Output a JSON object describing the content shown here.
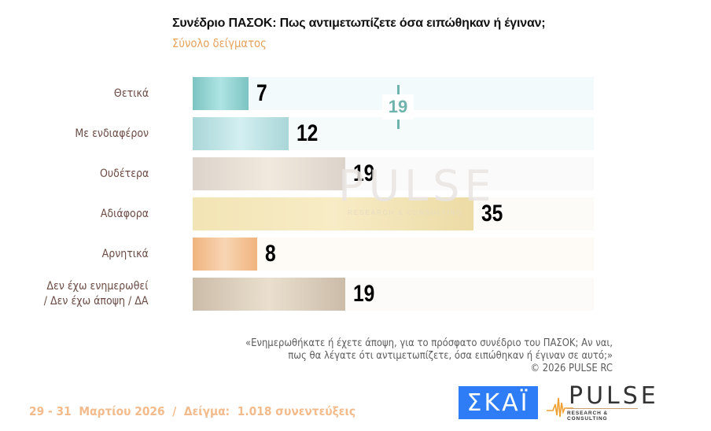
{
  "header": {
    "title": "Συνέδριο ΠΑΣΟΚ: Πως αντιμετωπίζετε όσα ειπώθηκαν ή έγιναν;",
    "subtitle": "Σύνολο δείγματος"
  },
  "chart_data": {
    "type": "bar",
    "orientation": "horizontal",
    "title": "Συνέδριο ΠΑΣΟΚ: Πως αντιμετωπίζετε όσα ειπώθηκαν ή έγιναν;",
    "subtitle": "Σύνολο δείγματος",
    "xlabel": "",
    "ylabel": "",
    "unit": "%",
    "categories": [
      "Θετικά",
      "Με ενδιαφέρον",
      "Ουδέτερα",
      "Αδιάφορα",
      "Αρνητικά",
      "Δεν έχω ενημερωθεί / Δεν έχω άποψη / ΔΑ"
    ],
    "values": [
      7,
      12,
      19,
      35,
      8,
      19
    ],
    "annotations": [
      {
        "text": "19",
        "description": "Θετικά + Με ενδιαφέρον combined",
        "color": "#6fb3ad"
      }
    ],
    "grid": false,
    "legend": null
  },
  "rows": [
    {
      "label": "Θετικά",
      "value": "7",
      "bar": [
        "#7cc4c2",
        "#aee4e3",
        "#7cc4c2"
      ],
      "track": "#f3fafb"
    },
    {
      "label": "Με ενδιαφέρον",
      "value": "12",
      "bar": [
        "#a9d6d8",
        "#d3eff1",
        "#a9d6d8"
      ],
      "track": "#f5fafb"
    },
    {
      "label": "Ουδέτερα",
      "value": "19",
      "bar": [
        "#dcd4ca",
        "#f1e8de",
        "#dcd4ca"
      ],
      "track": "#fbfafa"
    },
    {
      "label": "Αδιάφορα",
      "value": "35",
      "bar": [
        "#f2e4b4",
        "#f8ecc6",
        "#ecdba5"
      ],
      "track": "#fdfbf8"
    },
    {
      "label": "Αρνητικά",
      "value": "8",
      "bar": [
        "#f0b47e",
        "#f8d5b4",
        "#f0b47e"
      ],
      "track": "#fefaf6"
    },
    {
      "label": "Δεν έχω ενημερωθεί\n/ Δεν έχω άποψη / ΔΑ",
      "value": "19",
      "bar": [
        "#cbbca8",
        "#eadfcf",
        "#cbbca8"
      ],
      "track": "#fcfbfa"
    }
  ],
  "annotation": {
    "value": "19",
    "color": "#6fb3ad"
  },
  "watermark": {
    "text": "PULSE",
    "sub": "RESEARCH & CONSULTING"
  },
  "question": {
    "line1": "«Ενημερωθήκατε ή έχετε άποψη, για το πρόσφατο συνέδριο του ΠΑΣΟΚ; Αν ναι,",
    "line2": "πως θα λέγατε ότι αντιμετωπίζετε, όσα ειπώθηκαν ή έγιναν σε αυτό;»",
    "copyright": "©  2026  PULSE RC"
  },
  "footer": {
    "text": "29 - 31  Μαρτίου 2026  /  Δείγμα:  1.018 συνεντεύξεις"
  },
  "logos": {
    "skai": "ΣΚΑΪ",
    "pulse": "PULSE",
    "pulse_sub": "RESEARCH & CONSULTING"
  },
  "colors": {
    "subtitle": "#e5a25d",
    "footer": "#f3bb8b",
    "label": "#6b4c45",
    "skai_blue": "#2e7cf6",
    "annotation": "#6fb3ad"
  }
}
